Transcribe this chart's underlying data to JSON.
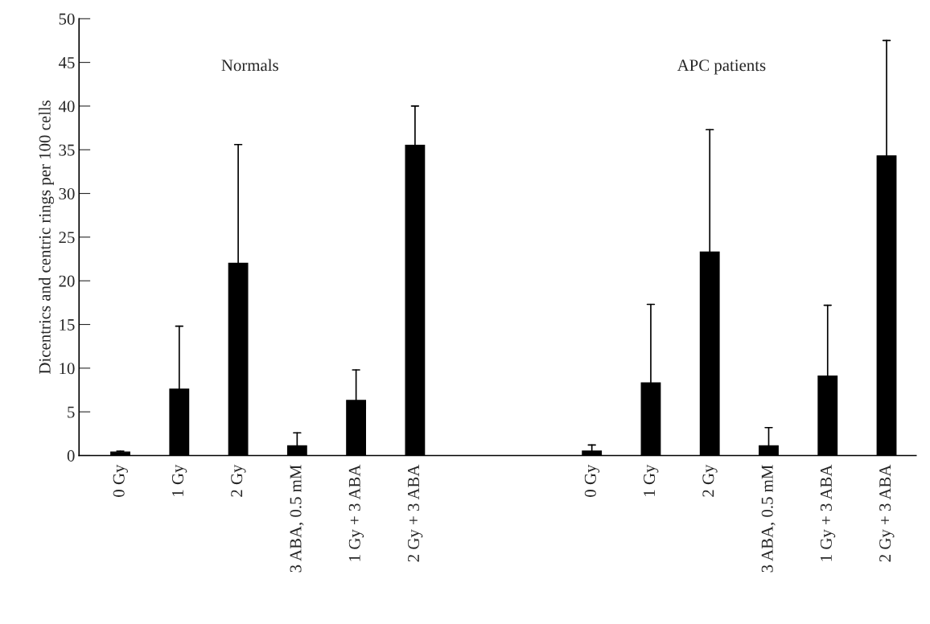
{
  "chart_data": {
    "type": "bar",
    "ylabel": "Dicentrics and centric rings per 100 cells",
    "categories": [
      "0 Gy",
      "1 Gy",
      "2 Gy",
      "3 ABA, 0.5 mM",
      "1 Gy + 3 ABA",
      "2 Gy + 3 ABA",
      null,
      null,
      "0 Gy",
      "1 Gy",
      "2 Gy",
      "3 ABA, 0.5 mM",
      "1 Gy + 3 ABA",
      "2 Gy + 3 ABA"
    ],
    "values": [
      0.4,
      7.6,
      22.0,
      1.1,
      6.3,
      35.5,
      null,
      null,
      0.5,
      8.3,
      23.3,
      1.1,
      9.1,
      34.3
    ],
    "errors": [
      [
        0.4,
        0.5
      ],
      [
        7.6,
        14.8
      ],
      [
        22.0,
        35.6
      ],
      [
        1.1,
        2.6
      ],
      [
        6.3,
        9.8
      ],
      [
        35.5,
        40.0
      ],
      null,
      null,
      [
        0.5,
        1.2
      ],
      [
        8.3,
        17.3
      ],
      [
        23.3,
        37.3
      ],
      [
        1.1,
        3.2
      ],
      [
        9.1,
        17.2
      ],
      [
        34.3,
        47.5
      ]
    ],
    "color": "#000000",
    "annotations": [
      "Normals",
      "APC patients"
    ],
    "ylim": [
      0,
      50
    ],
    "yticks": [
      0,
      5,
      10,
      15,
      20,
      25,
      30,
      35,
      40,
      45,
      50
    ],
    "grid": false
  }
}
